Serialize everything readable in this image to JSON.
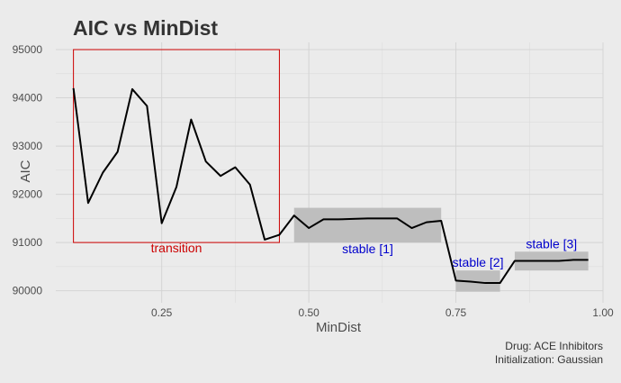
{
  "chart_data": {
    "type": "line",
    "title": "AIC vs MinDist",
    "xlabel": "MinDist",
    "ylabel": "AIC",
    "xlim": [
      0.07,
      1.0
    ],
    "ylim": [
      89750,
      95150
    ],
    "x_ticks": [
      0.25,
      0.5,
      0.75,
      1.0
    ],
    "x_tick_labels": [
      "0.25",
      "0.50",
      "0.75",
      "1.00"
    ],
    "y_ticks": [
      90000,
      91000,
      92000,
      93000,
      94000,
      95000
    ],
    "y_tick_labels": [
      "90000",
      "91000",
      "92000",
      "93000",
      "94000",
      "95000"
    ],
    "grid": true,
    "series": [
      {
        "color": "#000000",
        "x": [
          0.1,
          0.125,
          0.15,
          0.175,
          0.2,
          0.225,
          0.25,
          0.275,
          0.3,
          0.325,
          0.35,
          0.375,
          0.4,
          0.425,
          0.45,
          0.475,
          0.5,
          0.525,
          0.55,
          0.575,
          0.6,
          0.625,
          0.65,
          0.675,
          0.7,
          0.725,
          0.75,
          0.775,
          0.8,
          0.825,
          0.85,
          0.875,
          0.9,
          0.925,
          0.95,
          0.975
        ],
        "y": [
          94200,
          91820,
          92450,
          92880,
          94180,
          93830,
          91400,
          92150,
          93550,
          92680,
          92380,
          92560,
          92200,
          91060,
          91160,
          91560,
          91300,
          91480,
          91480,
          91490,
          91500,
          91500,
          91500,
          91300,
          91420,
          91450,
          90210,
          90190,
          90160,
          90160,
          90620,
          90620,
          90620,
          90620,
          90640,
          90640
        ]
      }
    ],
    "regions": [
      {
        "label": "transition",
        "style": "outline",
        "color": "#cc0000",
        "x": [
          0.1,
          0.45
        ],
        "y": [
          91000,
          95000
        ]
      },
      {
        "label": "stable [1]",
        "style": "fill",
        "color": "#0000cc",
        "x": [
          0.475,
          0.725
        ],
        "y": [
          91000,
          91720
        ]
      },
      {
        "label": "stable [2]",
        "style": "fill",
        "color": "#0000cc",
        "x": [
          0.75,
          0.825
        ],
        "y": [
          89980,
          90420
        ]
      },
      {
        "label": "stable [3]",
        "style": "fill",
        "color": "#0000cc",
        "x": [
          0.85,
          0.975
        ],
        "y": [
          90420,
          90810
        ]
      }
    ],
    "caption_lines": [
      "Drug: ACE Inhibitors",
      "Initialization: Gaussian"
    ]
  }
}
